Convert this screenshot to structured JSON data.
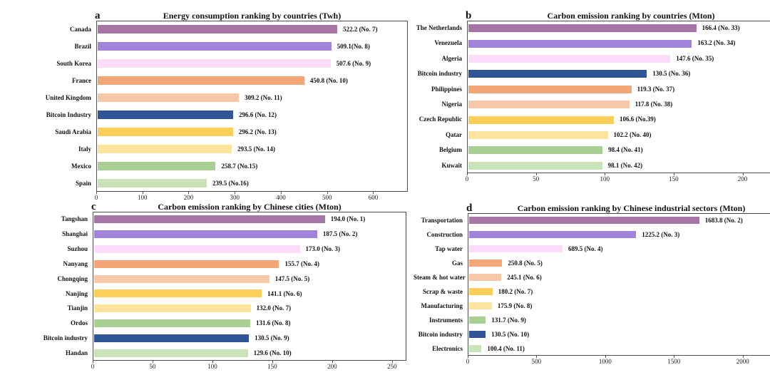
{
  "figure": {
    "background": "#ffffff",
    "frame_color": "#4f4f4f",
    "palette": {
      "mauve": "#a576a5",
      "purple": "#a283dc",
      "pale_pink": "#fbdcfb",
      "orange": "#f4a679",
      "peach": "#f7c9a8",
      "bitcoin_blue": "#2f5597",
      "gold": "#fcce5a",
      "pale_yellow": "#fce49c",
      "green": "#a9cf92",
      "pale_green": "#c9e3b8"
    }
  },
  "chart_data": [
    {
      "type": "bar",
      "orientation": "horizontal",
      "panel_letter": "a",
      "title": "Energy consumption ranking by countries (Twh)",
      "xlabel": "",
      "ylabel": "",
      "xlim": [
        0,
        675
      ],
      "xticks": [
        0,
        100,
        200,
        300,
        400,
        500,
        600
      ],
      "grid": false,
      "legend": "none",
      "categories": [
        "Canada",
        "Brazil",
        "South Korea",
        "France",
        "United Kingdom",
        "Bitcoin Industry",
        "Saudi Arabia",
        "Italy",
        "Mexico",
        "Spain"
      ],
      "values": [
        522.2,
        509.1,
        507.6,
        450.8,
        309.2,
        296.6,
        296.2,
        293.5,
        258.7,
        239.5
      ],
      "labels": [
        "522.2 (No. 7)",
        "509.1(No. 8)",
        "507.6 (No. 9)",
        "450.8 (No. 10)",
        "309.2 (No. 11)",
        "296.6 (No. 12)",
        "296.2 (No. 13)",
        "293.5 (No. 14)",
        "258.7 (No.15)",
        "239.5 (No.16)"
      ],
      "colors": [
        "#a576a5",
        "#a283dc",
        "#fbdcfb",
        "#f4a679",
        "#f7c9a8",
        "#2f5597",
        "#fcce5a",
        "#fce49c",
        "#a9cf92",
        "#c9e3b8"
      ]
    },
    {
      "type": "bar",
      "orientation": "horizontal",
      "panel_letter": "b",
      "title": "Carbon emission ranking by countries (Mton)",
      "xlabel": "",
      "ylabel": "",
      "xlim": [
        0,
        238
      ],
      "xticks": [
        0,
        50,
        100,
        150,
        200
      ],
      "grid": false,
      "legend": "none",
      "categories": [
        "The Netherlands",
        "Venezuela",
        "Algeria",
        "Bitcoin industry",
        "Philippines",
        "Nigeria",
        "Czech Republic",
        "Qatar",
        "Belgium",
        "Kuwait"
      ],
      "values": [
        166.4,
        163.2,
        147.6,
        130.5,
        119.3,
        117.8,
        106.6,
        102.2,
        98.4,
        98.1
      ],
      "labels": [
        "166.4 (No. 33)",
        "163.2 (No. 34)",
        "147.6 (No. 35)",
        "130.5 (No. 36)",
        "119.3 (No. 37)",
        "117.8 (No. 38)",
        "106.6 (No.39)",
        "102.2 (No. 40)",
        "98.4 (No. 41)",
        "98.1 (No. 42)"
      ],
      "colors": [
        "#a576a5",
        "#a283dc",
        "#fbdcfb",
        "#2f5597",
        "#f4a679",
        "#f7c9a8",
        "#fcce5a",
        "#fce49c",
        "#a9cf92",
        "#c9e3b8"
      ]
    },
    {
      "type": "bar",
      "orientation": "horizontal",
      "panel_letter": "c",
      "title": "Carbon emission ranking by Chinese cities (Mton)",
      "xlabel": "",
      "ylabel": "",
      "xlim": [
        0,
        262
      ],
      "xticks": [
        0,
        50,
        100,
        150,
        200,
        250
      ],
      "grid": false,
      "legend": "none",
      "categories": [
        "Tangshan",
        "Shanghai",
        "Suzhou",
        "Nanyang",
        "Chongqing",
        "Nanjing",
        "Tianjin",
        "Ordos",
        "Bitcoin industry",
        "Handan"
      ],
      "values": [
        194.0,
        187.5,
        173.0,
        155.7,
        147.5,
        141.1,
        132.0,
        131.6,
        130.5,
        129.6
      ],
      "labels": [
        "194.0 (No. 1)",
        "187.5 (No. 2)",
        "173.0 (No. 3)",
        "155.7 (No. 4)",
        "147.5 (No. 5)",
        "141.1 (No. 6)",
        "132.0 (No. 7)",
        "131.6 (No. 8)",
        "130.5 (No. 9)",
        "129.6 (No. 10)"
      ],
      "colors": [
        "#a576a5",
        "#a283dc",
        "#fbdcfb",
        "#f4a679",
        "#f7c9a8",
        "#fcce5a",
        "#fce49c",
        "#a9cf92",
        "#2f5597",
        "#c9e3b8"
      ]
    },
    {
      "type": "bar",
      "orientation": "horizontal",
      "panel_letter": "d",
      "title": "Carbon emission ranking by Chinese industrial sectors (Mton)",
      "xlabel": "",
      "ylabel": "",
      "xlim": [
        0,
        2380
      ],
      "xticks": [
        0,
        500,
        1000,
        1500,
        2000
      ],
      "grid": false,
      "legend": "none",
      "categories": [
        "Transportation",
        "Construction",
        "Tap water",
        "Gas",
        "Steam & hot water",
        "Scrap & waste",
        "Manufacturing",
        "Instruments",
        "Bitcoin industry",
        "Electronics"
      ],
      "values": [
        1683.8,
        1225.2,
        689.5,
        250.8,
        245.1,
        180.2,
        175.9,
        131.7,
        130.5,
        100.4
      ],
      "labels": [
        "1683.8 (No. 2)",
        "1225.2 (No. 3)",
        "689.5 (No. 4)",
        "250.8 (No. 5)",
        "245.1 (No. 6)",
        "180.2 (No. 7)",
        "175.9 (No. 8)",
        "131.7 (No. 9)",
        "130.5 (No. 10)",
        "100.4 (No. 11)"
      ],
      "colors": [
        "#a576a5",
        "#a283dc",
        "#fbdcfb",
        "#f4a679",
        "#f7c9a8",
        "#fcce5a",
        "#fce49c",
        "#a9cf92",
        "#2f5597",
        "#c9e3b8"
      ]
    }
  ]
}
